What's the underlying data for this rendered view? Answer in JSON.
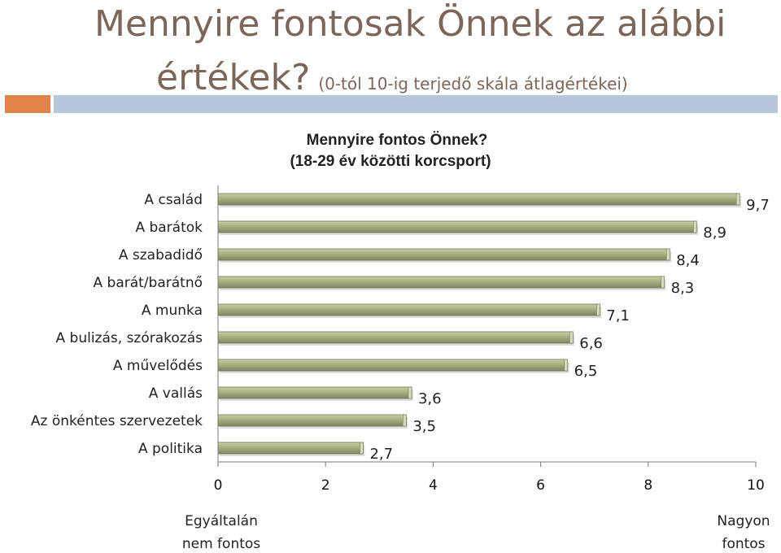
{
  "header": {
    "title_line1": "Mennyire fontosak Önnek az alábbi",
    "title_line2": "értékek?",
    "subtitle": "(0-tól 10-ig terjedő skála átlagértékei)"
  },
  "colors": {
    "title": "#7b6659",
    "accent_orange": "#e0844a",
    "accent_blue": "#b9c7da",
    "bar_fill": "#a7b07e",
    "bar_dark": "#6f7752",
    "bar_light": "#d6dcbc"
  },
  "chart_data": {
    "type": "bar",
    "orientation": "horizontal",
    "title": [
      "Mennyire fontos Önnek?",
      "(18-29 év közötti korcsport)"
    ],
    "categories": [
      "A család",
      "A barátok",
      "A szabadidő",
      "A barát/barátnő",
      "A munka",
      "A bulizás, szórakozás",
      "A művelődés",
      "A vallás",
      "Az önkéntes szervezetek",
      "A politika"
    ],
    "values": [
      9.7,
      8.9,
      8.4,
      8.3,
      7.1,
      6.6,
      6.5,
      3.6,
      3.5,
      2.7
    ],
    "value_labels": [
      "9,7",
      "8,9",
      "8,4",
      "8,3",
      "7,1",
      "6,6",
      "6,5",
      "3,6",
      "3,5",
      "2,7"
    ],
    "xlim": [
      0,
      10
    ],
    "xticks": [
      "0",
      "2",
      "4",
      "6",
      "8",
      "10"
    ],
    "x_left_label": [
      "Egyáltalán",
      "nem fontos"
    ],
    "x_right_label": [
      "Nagyon",
      "fontos"
    ],
    "grid": false
  }
}
